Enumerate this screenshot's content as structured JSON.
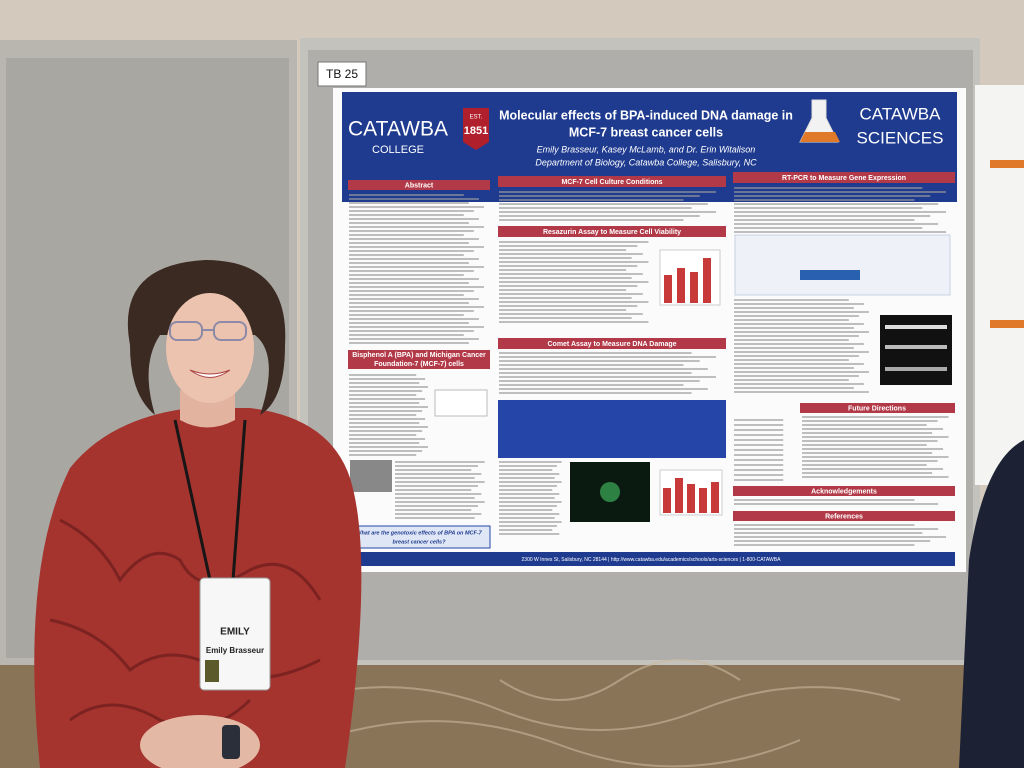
{
  "booth_label": "TB 25",
  "poster": {
    "logo_left": {
      "name": "CATAWBA",
      "sub": "COLLEGE",
      "est": "EST.",
      "year": "1851"
    },
    "title_lines": [
      "Molecular effects of BPA-induced DNA damage in",
      "MCF-7 breast cancer cells"
    ],
    "authors": "Emily Brasseur, Kasey McLamb, and Dr. Erin Witalison",
    "affiliation": "Department of Biology, Catawba College, Salisbury, NC",
    "logo_right": [
      "CATAWBA",
      "SCIENCES"
    ],
    "sections": {
      "abstract": "Abstract",
      "background": [
        "Bisphenol A (BPA) and Michigan Cancer",
        "Foundation-7 (MCF-7) cells"
      ],
      "culture": "MCF-7 Cell Culture Conditions",
      "resazurin": "Resazurin Assay to Measure Cell Viability",
      "comet": "Comet Assay to Measure DNA Damage",
      "rtpcr": "RT-PCR to Measure Gene Expression",
      "future": "Future Directions",
      "acknowledgements": "Acknowledgements",
      "references": "References"
    },
    "question": [
      "What are the genotoxic effects of BPA on MCF-7",
      "breast cancer cells?"
    ],
    "footer": "2300 W Innes St, Salisbury, NC 28144  |  http://www.catawba.edu/academics/schools/arts-sciences  |  1-800-CATAWBA"
  },
  "badge": {
    "first_name": "EMILY",
    "full_name": "Emily Brasseur"
  }
}
